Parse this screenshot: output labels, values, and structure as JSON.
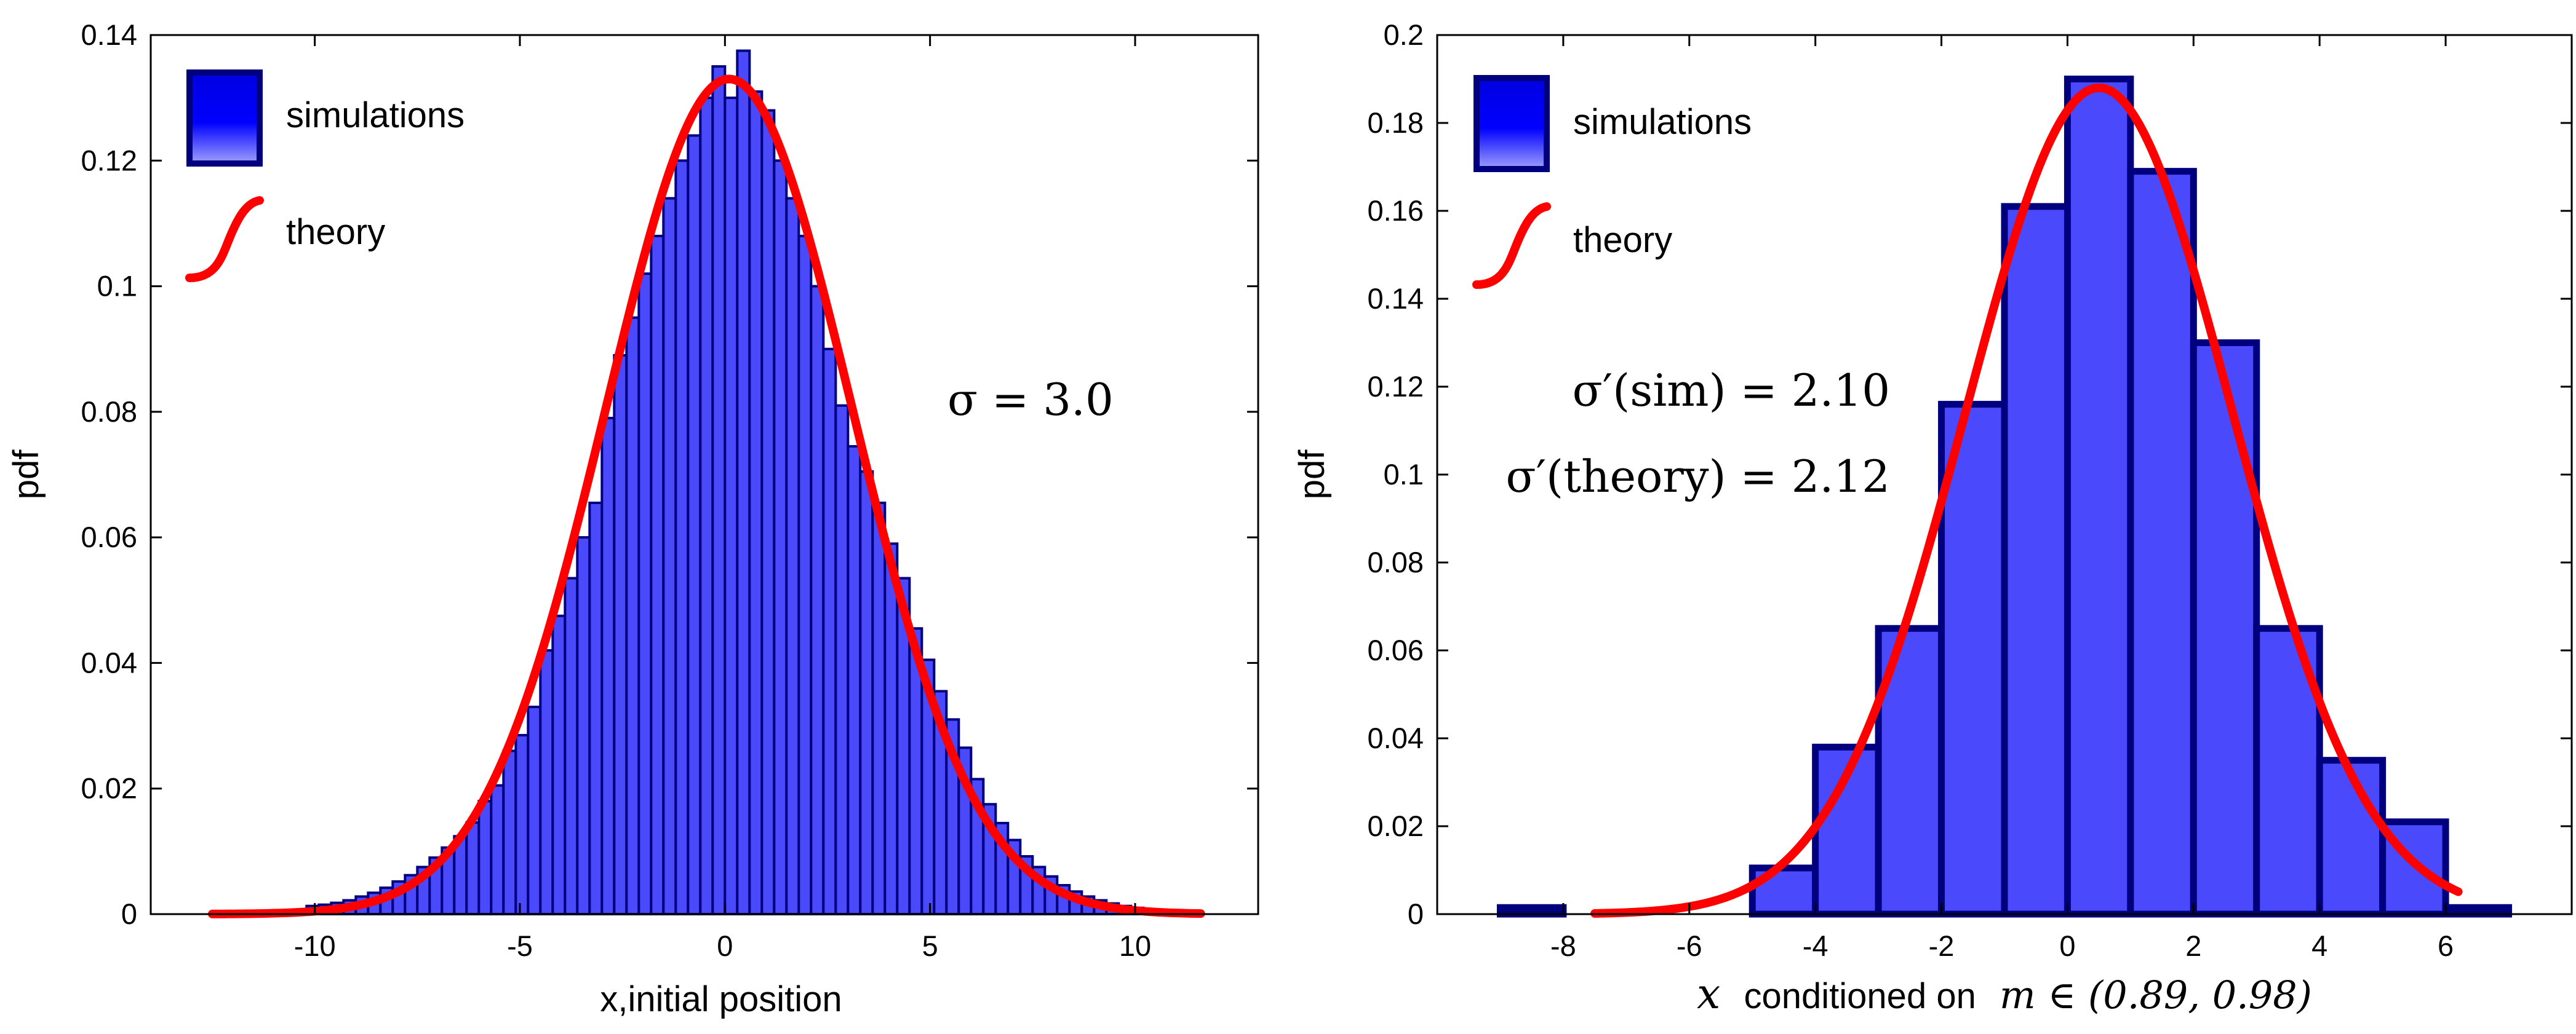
{
  "chart_data": [
    {
      "type": "bar",
      "name": "left",
      "title": "",
      "xlabel": "x,initial position",
      "ylabel": "pdf",
      "xlim": [
        -14.0,
        13.0
      ],
      "ylim": [
        0,
        0.14
      ],
      "xticks": [
        -10,
        -5,
        0,
        5,
        10
      ],
      "yticks": [
        0,
        0.02,
        0.04,
        0.06,
        0.08,
        0.1,
        0.12,
        0.14
      ],
      "ytick_labels": [
        "0",
        "0.02",
        "0.04",
        "0.06",
        "0.08",
        "0.1",
        "0.12",
        "0.14"
      ],
      "grid": false,
      "legend_position": "top-left",
      "legend": [
        {
          "label": "simulations",
          "kind": "bar"
        },
        {
          "label": "theory",
          "kind": "line"
        }
      ],
      "annotation": "σ = 3.0",
      "series": [
        {
          "name": "simulations",
          "kind": "histogram",
          "bin_width": 0.3,
          "bin_starts": [
            -10.2,
            -9.9,
            -9.6,
            -9.3,
            -9.0,
            -8.7,
            -8.4,
            -8.1,
            -7.8,
            -7.5,
            -7.2,
            -6.9,
            -6.6,
            -6.3,
            -6.0,
            -5.7,
            -5.4,
            -5.1,
            -4.8,
            -4.5,
            -4.2,
            -3.9,
            -3.6,
            -3.3,
            -3.0,
            -2.7,
            -2.4,
            -2.1,
            -1.8,
            -1.5,
            -1.2,
            -0.9,
            -0.6,
            -0.3,
            0.0,
            0.3,
            0.6,
            0.9,
            1.2,
            1.5,
            1.8,
            2.1,
            2.4,
            2.7,
            3.0,
            3.3,
            3.6,
            3.9,
            4.2,
            4.5,
            4.8,
            5.1,
            5.4,
            5.7,
            6.0,
            6.3,
            6.6,
            6.9,
            7.2,
            7.5,
            7.8,
            8.1,
            8.4,
            8.7,
            9.0,
            9.3,
            9.6,
            9.9
          ],
          "values": [
            0.0013,
            0.0015,
            0.0018,
            0.0022,
            0.0028,
            0.0034,
            0.0042,
            0.0052,
            0.0062,
            0.0075,
            0.009,
            0.0106,
            0.0124,
            0.0146,
            0.018,
            0.0205,
            0.026,
            0.0285,
            0.033,
            0.042,
            0.0475,
            0.0535,
            0.06,
            0.0655,
            0.079,
            0.089,
            0.095,
            0.102,
            0.108,
            0.114,
            0.12,
            0.124,
            0.13,
            0.135,
            0.13,
            0.1375,
            0.131,
            0.128,
            0.12,
            0.114,
            0.108,
            0.1,
            0.09,
            0.081,
            0.0745,
            0.0705,
            0.0655,
            0.059,
            0.0535,
            0.0455,
            0.0405,
            0.0355,
            0.031,
            0.0265,
            0.0215,
            0.0175,
            0.0145,
            0.0118,
            0.0092,
            0.0075,
            0.006,
            0.0046,
            0.0036,
            0.0028,
            0.0022,
            0.0017,
            0.0013,
            0.001
          ]
        },
        {
          "name": "theory",
          "kind": "gaussian",
          "mean": 0.1,
          "peak": 0.133,
          "x_range": [
            -12.5,
            11.6
          ]
        }
      ]
    },
    {
      "type": "bar",
      "name": "right",
      "title": "",
      "xlabel_text": "conditioned on",
      "xlabel_var": "x",
      "xlabel_set": "m ∈ (0.89, 0.98)",
      "ylabel": "pdf",
      "xlim": [
        -10.0,
        8.0
      ],
      "ylim": [
        0,
        0.2
      ],
      "xticks": [
        -8,
        -6,
        -4,
        -2,
        0,
        2,
        4,
        6
      ],
      "yticks": [
        0,
        0.02,
        0.04,
        0.06,
        0.08,
        0.1,
        0.12,
        0.14,
        0.16,
        0.18,
        0.2
      ],
      "ytick_labels": [
        "0",
        "0.02",
        "0.04",
        "0.06",
        "0.08",
        "0.1",
        "0.12",
        "0.14",
        "0.16",
        "0.18",
        "0.2"
      ],
      "grid": false,
      "legend_position": "top-left",
      "legend": [
        {
          "label": "simulations",
          "kind": "bar"
        },
        {
          "label": "theory",
          "kind": "line"
        }
      ],
      "annotations": [
        "σ′(sim) = 2.10",
        "σ′(theory) = 2.12"
      ],
      "series": [
        {
          "name": "simulations",
          "kind": "histogram",
          "bin_width": 1.0,
          "bin_starts": [
            -9,
            -5,
            -4,
            -3,
            -2,
            -1,
            0,
            1,
            2,
            3,
            4,
            5,
            6
          ],
          "values": [
            0.0015,
            0.0105,
            0.038,
            0.065,
            0.116,
            0.161,
            0.19,
            0.169,
            0.13,
            0.065,
            0.035,
            0.021,
            0.0015
          ]
        },
        {
          "name": "theory",
          "kind": "gaussian",
          "mean": 0.5,
          "peak": 0.188,
          "x_range": [
            -7.5,
            6.2
          ]
        }
      ]
    }
  ],
  "colors": {
    "bar_fill": "#4a4afc",
    "bar_edge": "#00007f",
    "curve": "#ff0000",
    "axis": "#000000",
    "legend_box_top": "#0000e6",
    "legend_box_bottom": "#8c8cff"
  }
}
